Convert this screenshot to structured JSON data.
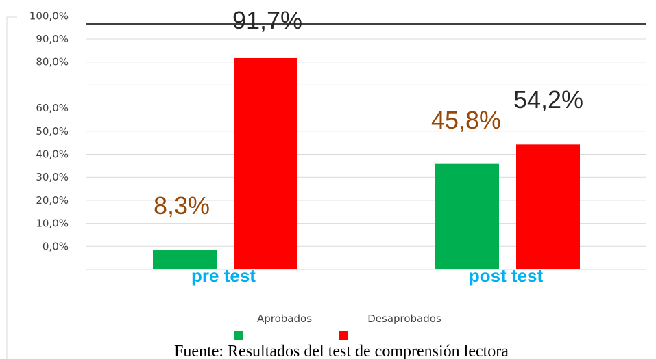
{
  "chart_data": {
    "type": "bar",
    "categories": [
      "pre test",
      "post test"
    ],
    "series": [
      {
        "name": "Aprobados",
        "color": "#00b050",
        "label_color": "#984806",
        "values": [
          8.3,
          45.8
        ],
        "value_labels": [
          "8,3%",
          "45,8%"
        ]
      },
      {
        "name": "Desaprobados",
        "color": "#ff0000",
        "label_color": "#262626",
        "values": [
          91.7,
          54.2
        ],
        "value_labels": [
          "91,7%",
          "54,2%"
        ]
      }
    ],
    "ylim": [
      0,
      100
    ],
    "yticks": [
      {
        "value": 0,
        "label": "0,0%"
      },
      {
        "value": 10,
        "label": "10,0%"
      },
      {
        "value": 20,
        "label": "20,0%"
      },
      {
        "value": 30,
        "label": "30,0%"
      },
      {
        "value": 40,
        "label": "40,0%"
      },
      {
        "value": 50,
        "label": "50,0%"
      },
      {
        "value": 60,
        "label": "60,0%"
      },
      {
        "value": 80,
        "label": "80,0%"
      },
      {
        "value": 90,
        "label": "90,0%"
      },
      {
        "value": 100,
        "label": "100,0%"
      }
    ],
    "grid": true,
    "legend": "bottom",
    "source": "Fuente: Resultados del test de comprensión lectora"
  }
}
